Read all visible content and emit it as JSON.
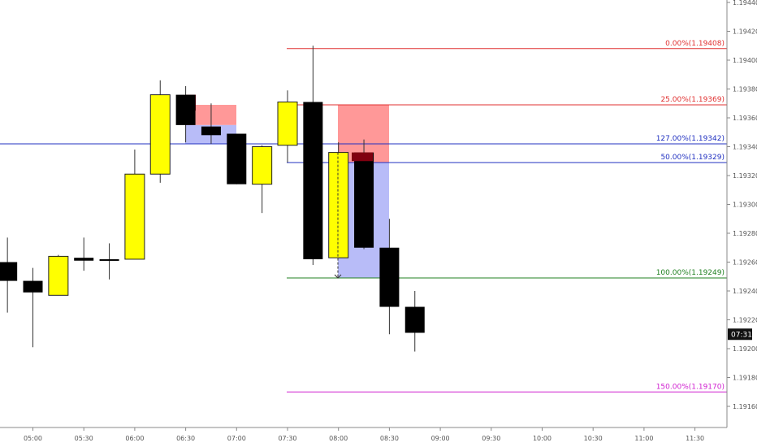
{
  "chart_data": {
    "type": "candlestick",
    "y_axis": {
      "ticks": [
        "1.19160",
        "1.19180",
        "1.19200",
        "1.19220",
        "1.19240",
        "1.19260",
        "1.19280",
        "1.19300",
        "1.19320",
        "1.19340",
        "1.19360",
        "1.19380",
        "1.19400",
        "1.19420",
        "1.19440"
      ],
      "ylim": [
        1.1915,
        1.19445
      ],
      "current_time_label": "07:31",
      "current_price": 1.1921
    },
    "x_axis": {
      "ticks": [
        "05:00",
        "05:30",
        "06:00",
        "06:30",
        "07:00",
        "07:30",
        "08:00",
        "08:30",
        "09:00",
        "09:30",
        "10:00",
        "10:30",
        "11:00",
        "11:30"
      ]
    },
    "candles": [
      {
        "t": "04:45",
        "o": 1.1926,
        "h": 1.19277,
        "l": 1.19225,
        "c": 1.19247
      },
      {
        "t": "05:00",
        "o": 1.19247,
        "h": 1.19256,
        "l": 1.19201,
        "c": 1.19239
      },
      {
        "t": "05:15",
        "o": 1.19237,
        "h": 1.19265,
        "l": 1.19237,
        "c": 1.19264
      },
      {
        "t": "05:30",
        "o": 1.19263,
        "h": 1.19277,
        "l": 1.19254,
        "c": 1.19261
      },
      {
        "t": "05:45",
        "o": 1.19262,
        "h": 1.19273,
        "l": 1.19248,
        "c": 1.19261
      },
      {
        "t": "06:00",
        "o": 1.19262,
        "h": 1.19338,
        "l": 1.19262,
        "c": 1.19321
      },
      {
        "t": "06:15",
        "o": 1.19321,
        "h": 1.19386,
        "l": 1.19315,
        "c": 1.19376
      },
      {
        "t": "06:30",
        "o": 1.19376,
        "h": 1.19382,
        "l": 1.19343,
        "c": 1.19355
      },
      {
        "t": "06:45",
        "o": 1.19354,
        "h": 1.1937,
        "l": 1.19342,
        "c": 1.19348
      },
      {
        "t": "07:00",
        "o": 1.19349,
        "h": 1.19349,
        "l": 1.19314,
        "c": 1.19314
      },
      {
        "t": "07:15",
        "o": 1.19314,
        "h": 1.19341,
        "l": 1.19294,
        "c": 1.1934
      },
      {
        "t": "07:30",
        "o": 1.19341,
        "h": 1.19379,
        "l": 1.19329,
        "c": 1.19371
      },
      {
        "t": "07:45",
        "o": 1.19371,
        "h": 1.1941,
        "l": 1.19258,
        "c": 1.19262
      },
      {
        "t": "08:00",
        "o": 1.19263,
        "h": 1.19343,
        "l": 1.19263,
        "c": 1.19336
      },
      {
        "t": "08:15",
        "o": 1.19336,
        "h": 1.19345,
        "l": 1.19269,
        "c": 1.1927
      },
      {
        "t": "08:30",
        "o": 1.1927,
        "h": 1.1929,
        "l": 1.1921,
        "c": 1.19229
      },
      {
        "t": "08:45",
        "o": 1.19229,
        "h": 1.1924,
        "l": 1.19198,
        "c": 1.19211
      }
    ],
    "fib_levels": [
      {
        "label": "0.00%(1.19408)",
        "price": 1.19408,
        "color": "#e03030"
      },
      {
        "label": "25.00%(1.19369)",
        "price": 1.19369,
        "color": "#e03030"
      },
      {
        "label": "127.00%(1.19342)",
        "price": 1.19342,
        "color": "#2030c0"
      },
      {
        "label": "50.00%(1.19329)",
        "price": 1.19329,
        "color": "#2030c0"
      },
      {
        "label": "100.00%(1.19249)",
        "price": 1.19249,
        "color": "#208020"
      },
      {
        "label": "150.00%(1.19170)",
        "price": 1.1917,
        "color": "#d020d0"
      }
    ],
    "colors": {
      "bull_body": "#ffff00",
      "bear_body": "#000000",
      "risk_zone": "#ff9898",
      "reward_zone": "#b8bcf8",
      "entry_fill": "#800010",
      "axis_line": "#888888"
    },
    "grid": false
  }
}
